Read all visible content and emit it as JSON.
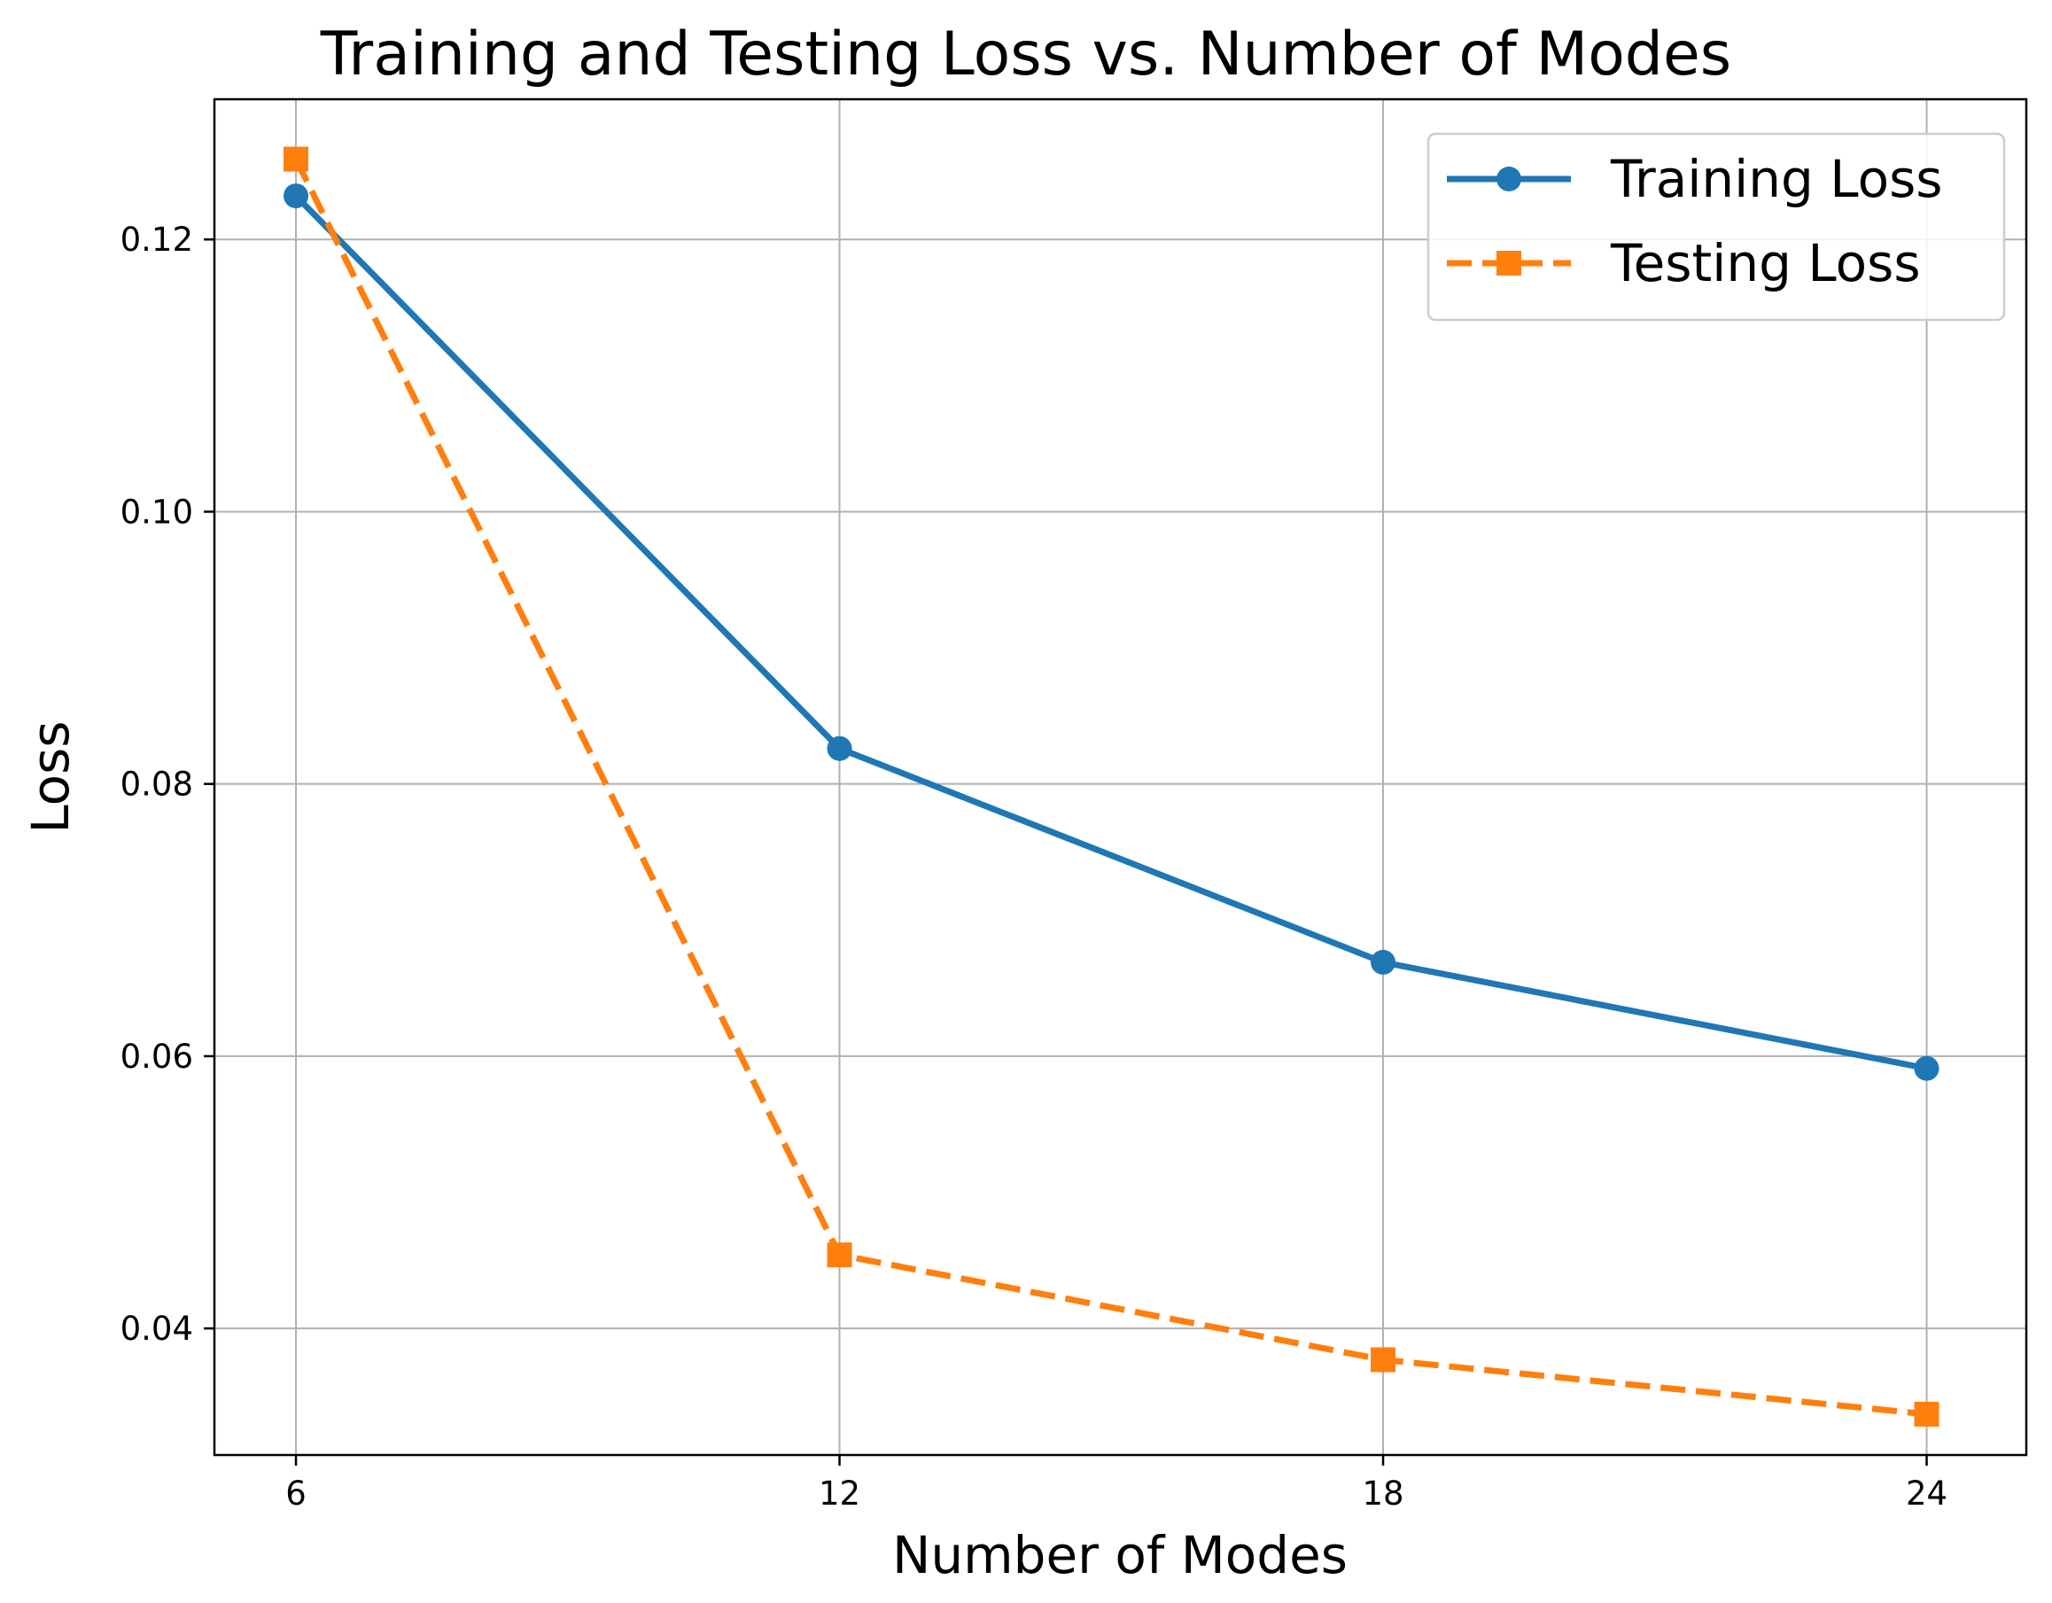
{
  "chart_data": {
    "type": "line",
    "title": "Training and Testing Loss vs. Number of Modes",
    "xlabel": "Number of Modes",
    "ylabel": "Loss",
    "x": [
      6,
      12,
      18,
      24
    ],
    "x_ticks": [
      "6",
      "12",
      "18",
      "24"
    ],
    "y_ticks": [
      "0.04",
      "0.06",
      "0.08",
      "0.10",
      "0.12"
    ],
    "y_tick_values": [
      0.04,
      0.06,
      0.08,
      0.1,
      0.12
    ],
    "xlim": [
      5.1,
      25.1
    ],
    "ylim": [
      0.0307,
      0.1303
    ],
    "grid": true,
    "legend_position": "top-right",
    "series": [
      {
        "name": "Training Loss",
        "values": [
          0.1232,
          0.0826,
          0.0669,
          0.0591
        ],
        "color": "#1f77b4",
        "marker": "circle",
        "line_style": "solid"
      },
      {
        "name": "Testing Loss",
        "values": [
          0.1259,
          0.0454,
          0.0377,
          0.0337
        ],
        "color": "#ff7f0e",
        "marker": "square",
        "line_style": "dashed"
      }
    ]
  }
}
